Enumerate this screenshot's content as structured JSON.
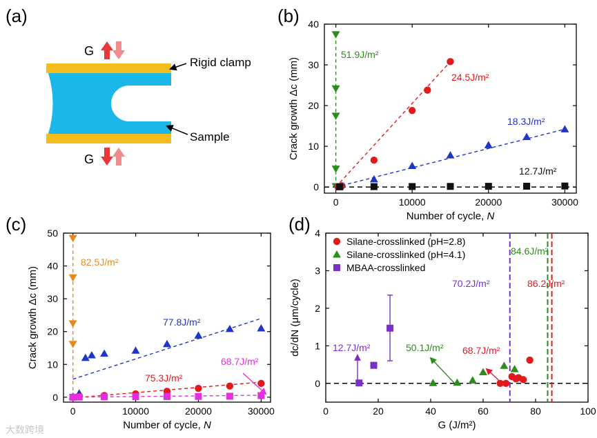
{
  "figure": {
    "watermark": "大数跨境"
  },
  "schematic": {
    "panel_label": "(a)",
    "top_force_label": "G",
    "bottom_force_label": "G",
    "clamp_label": "Rigid clamp",
    "sample_label": "Sample",
    "colors": {
      "clamp": "#F2BD1D",
      "sample": "#1BB7EA",
      "arrow_up": "#E8383B",
      "arrow_down": "#F18A8C"
    }
  },
  "chart_data": [
    {
      "id": "b",
      "type": "scatter",
      "panel_label": "(b)",
      "xlabel": "Number of cycle, N",
      "ylabel": "Crack growth Δc (mm)",
      "xlim": [
        -1500,
        31500
      ],
      "ylim": [
        -1.5,
        40
      ],
      "xticks": [
        0,
        10000,
        20000,
        30000
      ],
      "yticks": [
        0,
        10,
        20,
        30,
        40
      ],
      "baseline_y": 0,
      "series": [
        {
          "label": "51.9J/m²",
          "color": "#2E8B1E",
          "marker": "triangle-down",
          "dashed_fit": "vertical",
          "points": [
            [
              0,
              37.5
            ],
            [
              0,
              24.2
            ],
            [
              0,
              17.5
            ],
            [
              0,
              4.5
            ],
            [
              0,
              0.2
            ]
          ]
        },
        {
          "label": "24.5J/m²",
          "color": "#E31A1C",
          "marker": "circle",
          "points": [
            [
              300,
              0.1
            ],
            [
              800,
              0.3
            ],
            [
              5000,
              6.6
            ],
            [
              10000,
              18.8
            ],
            [
              12000,
              23.8
            ],
            [
              15000,
              30.8
            ]
          ],
          "fit": [
            [
              0,
              0
            ],
            [
              15000,
              30.8
            ]
          ]
        },
        {
          "label": "18.3J/m²",
          "color": "#1F35C8",
          "marker": "triangle-up",
          "points": [
            [
              500,
              0.1
            ],
            [
              5000,
              1.9
            ],
            [
              10000,
              5.2
            ],
            [
              15000,
              7.8
            ],
            [
              20000,
              10.3
            ],
            [
              25000,
              12.3
            ],
            [
              30000,
              14.2
            ]
          ],
          "fit": [
            [
              0,
              0
            ],
            [
              30000,
              14.2
            ]
          ]
        },
        {
          "label": "12.7J/m²",
          "color": "#111111",
          "marker": "square",
          "points": [
            [
              500,
              0.05
            ],
            [
              5000,
              0.1
            ],
            [
              10000,
              0.12
            ],
            [
              15000,
              0.15
            ],
            [
              20000,
              0.18
            ],
            [
              25000,
              0.2
            ],
            [
              30000,
              0.25
            ]
          ]
        }
      ]
    },
    {
      "id": "c",
      "type": "scatter",
      "panel_label": "(c)",
      "xlabel": "Number of cycle, N",
      "ylabel": "Crack growth Δc (mm)",
      "xlim": [
        -1500,
        31500
      ],
      "ylim": [
        -1.5,
        50
      ],
      "xticks": [
        0,
        10000,
        20000,
        30000
      ],
      "yticks": [
        0,
        10,
        20,
        30,
        40,
        50
      ],
      "series": [
        {
          "label": "82.5J/m²",
          "color": "#E8891D",
          "marker": "triangle-down",
          "dashed_fit": "vertical",
          "points": [
            [
              0,
              48.5
            ],
            [
              0,
              36.5
            ],
            [
              0,
              22.5
            ],
            [
              0,
              16.2
            ],
            [
              0,
              0
            ]
          ]
        },
        {
          "label": "77.8J/m²",
          "color": "#1F35C8",
          "marker": "triangle-up",
          "points": [
            [
              0,
              0.2
            ],
            [
              1000,
              1.2
            ],
            [
              2000,
              12.0
            ],
            [
              3000,
              12.8
            ],
            [
              5000,
              13.3
            ],
            [
              10000,
              14.2
            ],
            [
              15000,
              16.2
            ],
            [
              20000,
              18.8
            ],
            [
              25000,
              20.8
            ],
            [
              30000,
              21.0
            ]
          ],
          "fit": [
            [
              0,
              5.5
            ],
            [
              30000,
              24.0
            ]
          ]
        },
        {
          "label": "75.3J/m²",
          "color": "#E31A1C",
          "marker": "circle",
          "points": [
            [
              0,
              0
            ],
            [
              1000,
              0.2
            ],
            [
              5000,
              0.5
            ],
            [
              10000,
              1.0
            ],
            [
              15000,
              1.8
            ],
            [
              20000,
              2.7
            ],
            [
              25000,
              3.4
            ],
            [
              30000,
              4.2
            ]
          ],
          "fit": [
            [
              0,
              -0.2
            ],
            [
              30000,
              4.6
            ]
          ]
        },
        {
          "label": "68.7J/m²",
          "color": "#E32FE0",
          "marker": "square",
          "points": [
            [
              0,
              0
            ],
            [
              1000,
              0.05
            ],
            [
              5000,
              0.1
            ],
            [
              10000,
              0.15
            ],
            [
              15000,
              0.2
            ],
            [
              20000,
              0.25
            ],
            [
              25000,
              0.3
            ],
            [
              30000,
              0.5
            ]
          ],
          "fit": [
            [
              0,
              0
            ],
            [
              30000,
              0.6
            ]
          ]
        }
      ]
    },
    {
      "id": "d",
      "type": "scatter",
      "panel_label": "(d)",
      "xlabel": "G (J/m²)",
      "ylabel": "dc/dN (μm/cycle)",
      "xlim": [
        0,
        100
      ],
      "ylim": [
        -0.5,
        4
      ],
      "xticks": [
        0,
        20,
        40,
        60,
        80,
        100
      ],
      "yticks": [
        0,
        1,
        2,
        3,
        4
      ],
      "baseline_y": 0,
      "legend_position": "top-left",
      "series": [
        {
          "name": "Silane-crosslinked (pH=2.8)",
          "color": "#E31A1C",
          "marker": "circle",
          "points": [
            [
              66.5,
              0
            ],
            [
              68.7,
              0
            ],
            [
              71.0,
              0.18
            ],
            [
              72.5,
              0.12
            ],
            [
              73.5,
              0.15
            ],
            [
              75.3,
              0.1
            ],
            [
              77.8,
              0.62
            ]
          ]
        },
        {
          "name": "Silane-crosslinked (pH=4.1)",
          "color": "#2E8B1E",
          "marker": "triangle-up",
          "points": [
            [
              40.9,
              0.01
            ],
            [
              50.1,
              0.02
            ],
            [
              56.0,
              0.08
            ],
            [
              60.0,
              0.3
            ],
            [
              68.0,
              0.47
            ],
            [
              72.0,
              0.38
            ]
          ]
        },
        {
          "name": "MBAA-crosslinked",
          "color": "#7B2FC9",
          "marker": "square",
          "points": [
            [
              12.7,
              0.01
            ],
            [
              18.3,
              0.48
            ],
            [
              24.5,
              1.47
            ]
          ],
          "error_bars": [
            [
              24.5,
              0.6,
              2.35
            ]
          ]
        }
      ],
      "vertical_lines": [
        {
          "x": 70.2,
          "color": "#7B2FC9",
          "label": "70.2J/m²"
        },
        {
          "x": 84.6,
          "color": "#2E8B1E",
          "label": "84.6J/m²"
        },
        {
          "x": 86.2,
          "color": "#E31A1C",
          "label": "86.2J/m²"
        }
      ],
      "annotations": [
        {
          "text": "12.7J/m²",
          "color": "#7B2FC9",
          "from": [
            12.7,
            0.48
          ],
          "to": [
            12.7,
            0.85
          ]
        },
        {
          "text": "50.1J/m²",
          "color": "#2E8B1E",
          "from": [
            52.0,
            0.05
          ],
          "to": [
            43.0,
            0.75
          ]
        },
        {
          "text": "68.7J/m²",
          "color": "#E31A2E",
          "from": [
            68.0,
            0.1
          ],
          "to": [
            62.5,
            0.5
          ]
        }
      ]
    }
  ]
}
